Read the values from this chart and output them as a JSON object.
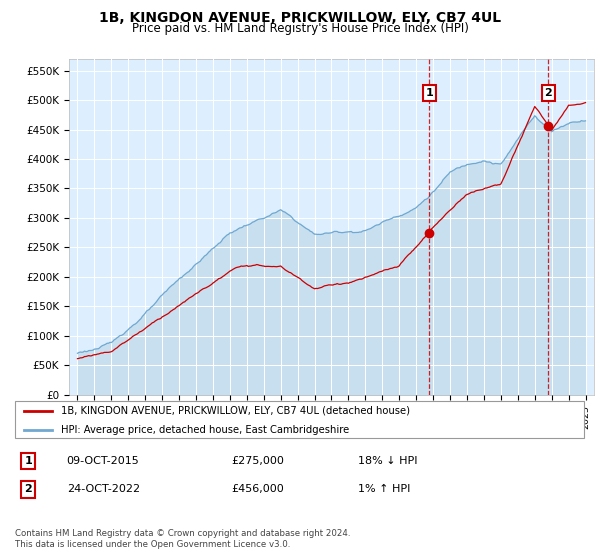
{
  "title": "1B, KINGDON AVENUE, PRICKWILLOW, ELY, CB7 4UL",
  "subtitle": "Price paid vs. HM Land Registry's House Price Index (HPI)",
  "legend_line1": "1B, KINGDON AVENUE, PRICKWILLOW, ELY, CB7 4UL (detached house)",
  "legend_line2": "HPI: Average price, detached house, East Cambridgeshire",
  "footnote": "Contains HM Land Registry data © Crown copyright and database right 2024.\nThis data is licensed under the Open Government Licence v3.0.",
  "sale1_label": "1",
  "sale1_date": "09-OCT-2015",
  "sale1_price": "£275,000",
  "sale1_hpi": "18% ↓ HPI",
  "sale2_label": "2",
  "sale2_date": "24-OCT-2022",
  "sale2_price": "£456,000",
  "sale2_hpi": "1% ↑ HPI",
  "sale1_x": 2015.78,
  "sale1_y": 275000,
  "sale2_x": 2022.81,
  "sale2_y": 456000,
  "ylim": [
    0,
    570000
  ],
  "xlim": [
    1994.5,
    2025.5
  ],
  "hpi_color": "#6fa8d0",
  "price_color": "#cc0000",
  "background_color": "#ffffff",
  "grid_color": "#cccccc",
  "sale_box_color": "#cc0000",
  "chart_bg": "#ddeeff",
  "fill_color": "#c8dff0"
}
